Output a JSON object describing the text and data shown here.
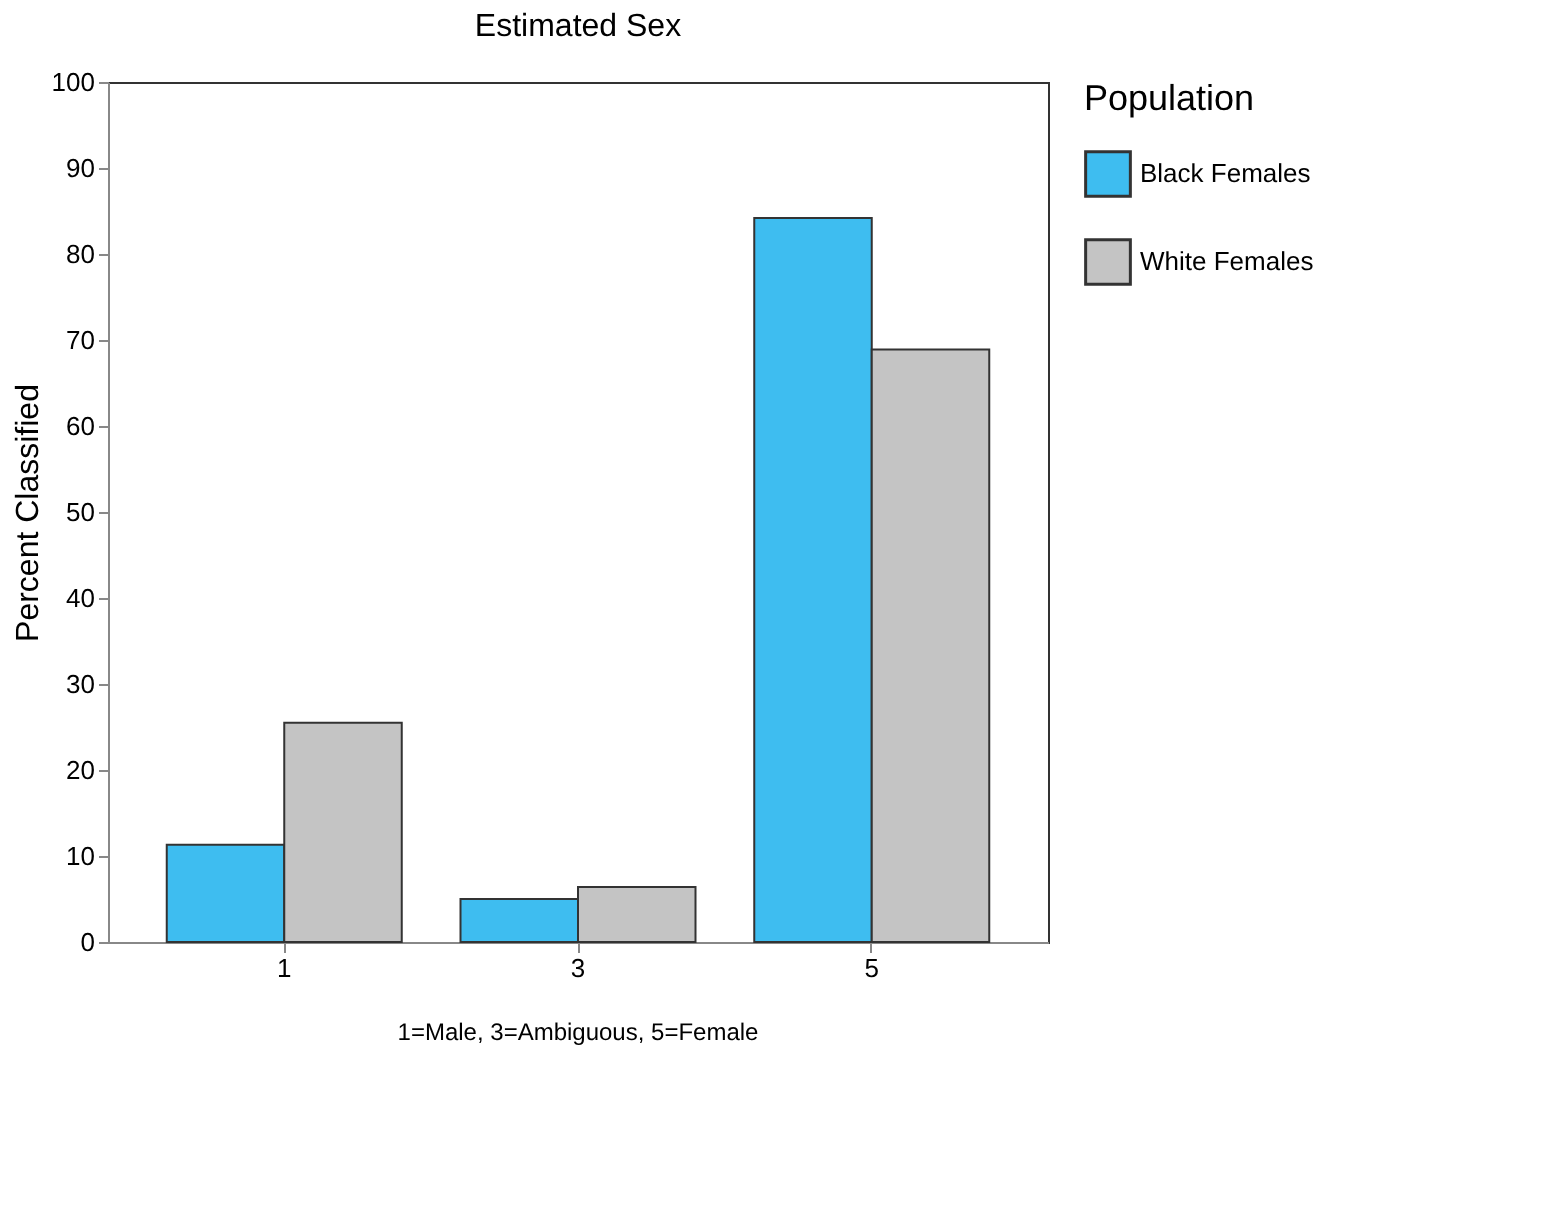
{
  "chart_data": {
    "type": "bar",
    "title": "Estimated Sex",
    "ylabel": "Percent Classified",
    "categories": [
      "1",
      "3",
      "5"
    ],
    "series": [
      {
        "name": "Black Females",
        "color": "#3ebdf0",
        "values": [
          11.3,
          5,
          84.2
        ]
      },
      {
        "name": "White Females",
        "color": "#c4c4c4",
        "values": [
          25.5,
          6.4,
          68.9
        ]
      }
    ],
    "ylim": [
      0,
      100
    ],
    "yticks": [
      0,
      10,
      20,
      30,
      40,
      50,
      60,
      70,
      80,
      90,
      100
    ],
    "grid": false,
    "legend": "right",
    "legend_title": "Population",
    "annotations": [
      "1=Male, 3=Ambiguous, 5=Female"
    ]
  }
}
